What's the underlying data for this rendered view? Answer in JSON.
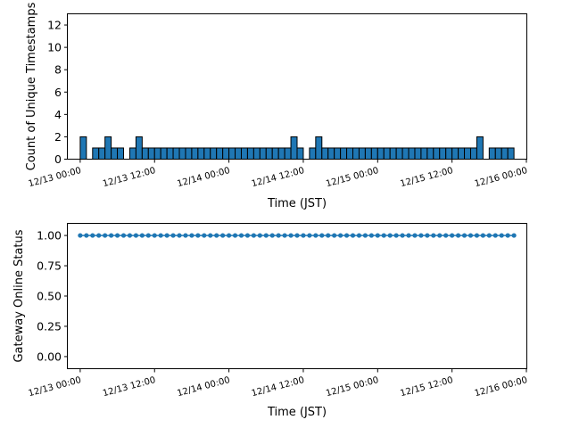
{
  "chart_data": [
    {
      "type": "bar",
      "title": "",
      "xlabel": "Time (JST)",
      "ylabel": "Count of Unique Timestamps",
      "ylim": [
        0,
        13
      ],
      "yticks": [
        0,
        2,
        4,
        6,
        8,
        10,
        12
      ],
      "xlim_hours": [
        -2,
        72
      ],
      "xticks": [
        {
          "hour": 0,
          "label": "12/13 00:00"
        },
        {
          "hour": 12,
          "label": "12/13 12:00"
        },
        {
          "hour": 24,
          "label": "12/14 00:00"
        },
        {
          "hour": 36,
          "label": "12/14 12:00"
        },
        {
          "hour": 48,
          "label": "12/15 00:00"
        },
        {
          "hour": 60,
          "label": "12/15 12:00"
        },
        {
          "hour": 72,
          "label": "12/16 00:00"
        }
      ],
      "bar_color": "#1f77b4",
      "edge_color": "#000000",
      "bar_width_hours": 1,
      "x_start_hour": 0,
      "values": [
        2,
        0,
        1,
        1,
        2,
        1,
        1,
        0,
        1,
        2,
        1,
        1,
        1,
        1,
        1,
        1,
        1,
        1,
        1,
        1,
        1,
        1,
        1,
        1,
        1,
        1,
        1,
        1,
        1,
        1,
        1,
        1,
        1,
        1,
        2,
        1,
        0,
        1,
        2,
        1,
        1,
        1,
        1,
        1,
        1,
        1,
        1,
        1,
        1,
        1,
        1,
        1,
        1,
        1,
        1,
        1,
        1,
        1,
        1,
        1,
        1,
        1,
        1,
        1,
        2,
        0,
        1,
        1,
        1,
        1
      ]
    },
    {
      "type": "line",
      "title": "",
      "xlabel": "Time (JST)",
      "ylabel": "Gateway Online Status",
      "ylim": [
        -0.1,
        1.1
      ],
      "yticks": [
        "0.00",
        "0.25",
        "0.50",
        "0.75",
        "1.00"
      ],
      "xlim_hours": [
        -2,
        72
      ],
      "xticks": [
        {
          "hour": 0,
          "label": "12/13 00:00"
        },
        {
          "hour": 12,
          "label": "12/13 12:00"
        },
        {
          "hour": 24,
          "label": "12/14 00:00"
        },
        {
          "hour": 36,
          "label": "12/14 12:00"
        },
        {
          "hour": 48,
          "label": "12/15 00:00"
        },
        {
          "hour": 60,
          "label": "12/15 12:00"
        },
        {
          "hour": 72,
          "label": "12/16 00:00"
        }
      ],
      "line_color": "#1f77b4",
      "marker": "circle",
      "x_start_hour": 0,
      "x_step_hours": 1,
      "values": [
        1,
        1,
        1,
        1,
        1,
        1,
        1,
        1,
        1,
        1,
        1,
        1,
        1,
        1,
        1,
        1,
        1,
        1,
        1,
        1,
        1,
        1,
        1,
        1,
        1,
        1,
        1,
        1,
        1,
        1,
        1,
        1,
        1,
        1,
        1,
        1,
        1,
        1,
        1,
        1,
        1,
        1,
        1,
        1,
        1,
        1,
        1,
        1,
        1,
        1,
        1,
        1,
        1,
        1,
        1,
        1,
        1,
        1,
        1,
        1,
        1,
        1,
        1,
        1,
        1,
        1,
        1,
        1,
        1,
        1,
        1
      ]
    }
  ]
}
